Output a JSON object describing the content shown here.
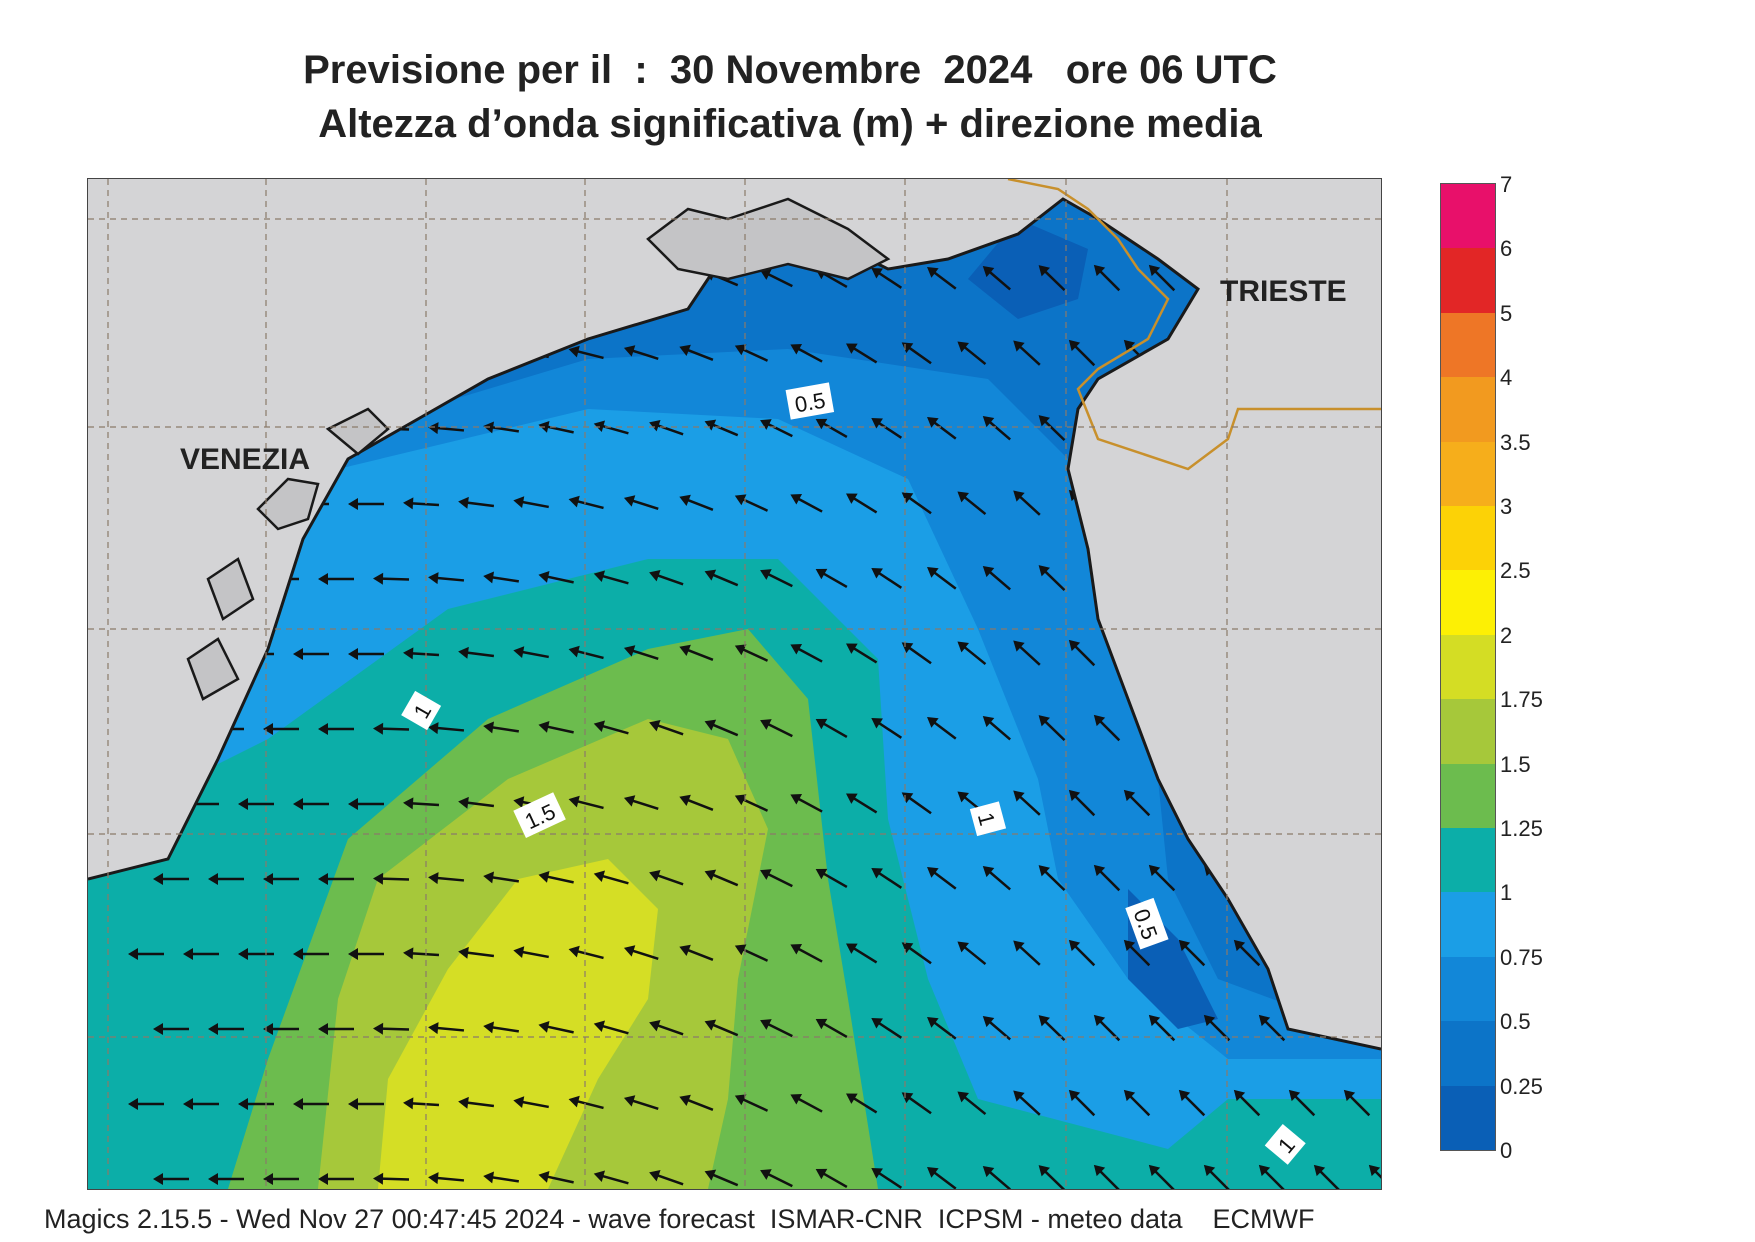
{
  "title": {
    "line1": "Previsione per il  :  30 Novembre  2024   ore 06 UTC",
    "line2": "Altezza d’onda significativa (m) + direzione media"
  },
  "map": {
    "places": [
      "VENEZIA",
      "TRIESTE"
    ],
    "contour_labels": [
      "0.5",
      "1",
      "1.5",
      "1",
      "0.5",
      "1"
    ],
    "arrow_direction": "south-west",
    "land_color": "#d4d4d6",
    "coast_color": "#1a1a1a",
    "border_color": "#c8902c",
    "height_colors": {
      "0-0.25": "#0a5fb6",
      "0.25-0.5": "#0c74c8",
      "0.5-0.75": "#1287d8",
      "0.75-1": "#1b9ee6",
      "1-1.25": "#0caea8",
      "1.25-1.5": "#6cbc4e",
      "1.5-1.75": "#a6c83a",
      "1.75-2": "#d5de25"
    }
  },
  "legend": {
    "ticks": [
      "7",
      "6",
      "5",
      "4",
      "3.5",
      "3",
      "2.5",
      "2",
      "1.75",
      "1.5",
      "1.25",
      "1",
      "0.75",
      "0.5",
      "0.25",
      "0"
    ],
    "colors": [
      "#e8106a",
      "#e22626",
      "#ee7626",
      "#f29a1f",
      "#f6ae1b",
      "#fcd206",
      "#fdf004",
      "#d4dd24",
      "#a6c83a",
      "#6cbc4e",
      "#0caea8",
      "#1b9ee6",
      "#1287d8",
      "#0c74c8",
      "#0a5fb6"
    ]
  },
  "footer": "Magics 2.15.5 - Wed Nov 27 00:47:45 2024 - wave forecast  ISMAR-CNR  ICPSM - meteo data    ECMWF"
}
